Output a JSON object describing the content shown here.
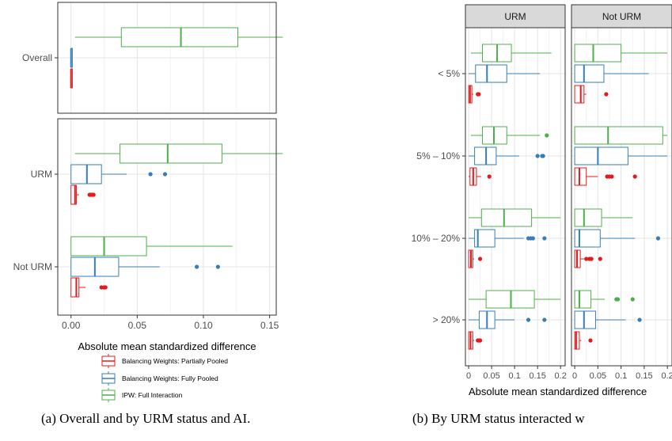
{
  "colors": {
    "partial": "#e41a1c",
    "fully": "#377eb8",
    "ipw": "#4daf4a",
    "grid": "#e4e4e4",
    "strip_bg": "#d9d9d9"
  },
  "chart_data": [
    {
      "type": "boxplot",
      "panel": "a",
      "xlabel": "Absolute mean standardized difference",
      "xlim": [
        -0.01,
        0.155
      ],
      "xticks": [
        0.0,
        0.05,
        0.1,
        0.15
      ],
      "xtick_labels": [
        "0.00",
        "0.05",
        "0.10",
        "0.15"
      ],
      "grid": true,
      "legend_position": "bottom",
      "legend": [
        {
          "key": "partial",
          "label": "Balancing Weights: Partially Pooled"
        },
        {
          "key": "fully",
          "label": "Balancing Weights: Fully Pooled"
        },
        {
          "key": "ipw",
          "label": "IPW: Full Interaction"
        }
      ],
      "facets": [
        {
          "groups": [
            {
              "label": "Overall",
              "boxes": [
                {
                  "key": "ipw",
                  "min": 0.003,
                  "q1": 0.038,
                  "median": 0.083,
                  "q3": 0.126,
                  "max": 0.16,
                  "outliers": []
                },
                {
                  "key": "fully",
                  "min": 0.0,
                  "q1": 0.0,
                  "median": 0.0,
                  "q3": 0.001,
                  "max": 0.001,
                  "outliers": []
                },
                {
                  "key": "partial",
                  "min": 0.0,
                  "q1": 0.0,
                  "median": 0.0,
                  "q3": 0.001,
                  "max": 0.001,
                  "outliers": []
                }
              ]
            }
          ]
        },
        {
          "groups": [
            {
              "label": "URM",
              "boxes": [
                {
                  "key": "ipw",
                  "min": 0.003,
                  "q1": 0.037,
                  "median": 0.073,
                  "q3": 0.114,
                  "max": 0.16,
                  "outliers": []
                },
                {
                  "key": "fully",
                  "min": 0.0,
                  "q1": 0.0,
                  "median": 0.012,
                  "q3": 0.023,
                  "max": 0.042,
                  "outliers": [
                    0.06,
                    0.071
                  ]
                },
                {
                  "key": "partial",
                  "min": 0.0,
                  "q1": 0.0,
                  "median": 0.003,
                  "q3": 0.004,
                  "max": 0.006,
                  "outliers": [
                    0.014,
                    0.015,
                    0.016,
                    0.017
                  ]
                }
              ]
            },
            {
              "label": "Not URM",
              "boxes": [
                {
                  "key": "ipw",
                  "min": 0.0,
                  "q1": 0.0,
                  "median": 0.025,
                  "q3": 0.057,
                  "max": 0.122,
                  "outliers": []
                },
                {
                  "key": "fully",
                  "min": 0.0,
                  "q1": 0.0,
                  "median": 0.018,
                  "q3": 0.036,
                  "max": 0.067,
                  "outliers": [
                    0.095,
                    0.111
                  ]
                },
                {
                  "key": "partial",
                  "min": 0.0,
                  "q1": 0.0,
                  "median": 0.004,
                  "q3": 0.006,
                  "max": 0.011,
                  "outliers": [
                    0.023,
                    0.025,
                    0.026
                  ]
                }
              ]
            }
          ]
        }
      ]
    },
    {
      "type": "boxplot",
      "panel": "b",
      "xlabel": "Absolute mean standardized difference",
      "xlim": [
        -0.007,
        0.21
      ],
      "xticks": [
        0,
        0.05,
        0.1,
        0.15,
        0.2
      ],
      "xtick_labels": [
        "0",
        "0.05",
        "0.1",
        "0.15",
        "0.2"
      ],
      "grid": true,
      "categories": [
        "< 5%",
        "5% – 10%",
        "10% – 20%",
        "> 20%"
      ],
      "facets": [
        {
          "strip": "URM",
          "groups": [
            {
              "label": "< 5%",
              "boxes": [
                {
                  "key": "ipw",
                  "min": 0.005,
                  "q1": 0.03,
                  "median": 0.062,
                  "q3": 0.093,
                  "max": 0.18,
                  "outliers": []
                },
                {
                  "key": "fully",
                  "min": 0.0,
                  "q1": 0.015,
                  "median": 0.04,
                  "q3": 0.083,
                  "max": 0.155,
                  "outliers": []
                },
                {
                  "key": "partial",
                  "min": 0.0,
                  "q1": 0.0,
                  "median": 0.003,
                  "q3": 0.007,
                  "max": 0.01,
                  "outliers": [
                    0.02,
                    0.022
                  ]
                }
              ]
            },
            {
              "label": "5% – 10%",
              "boxes": [
                {
                  "key": "ipw",
                  "min": 0.005,
                  "q1": 0.03,
                  "median": 0.055,
                  "q3": 0.083,
                  "max": 0.155,
                  "outliers": [
                    0.17
                  ]
                },
                {
                  "key": "fully",
                  "min": 0.0,
                  "q1": 0.013,
                  "median": 0.038,
                  "q3": 0.06,
                  "max": 0.11,
                  "outliers": [
                    0.15,
                    0.16,
                    0.162
                  ]
                },
                {
                  "key": "partial",
                  "min": 0.0,
                  "q1": 0.003,
                  "median": 0.01,
                  "q3": 0.017,
                  "max": 0.027,
                  "outliers": [
                    0.045
                  ]
                }
              ]
            },
            {
              "label": "10% – 20%",
              "boxes": [
                {
                  "key": "ipw",
                  "min": 0.0,
                  "q1": 0.028,
                  "median": 0.077,
                  "q3": 0.137,
                  "max": 0.2,
                  "outliers": []
                },
                {
                  "key": "fully",
                  "min": 0.0,
                  "q1": 0.013,
                  "median": 0.02,
                  "q3": 0.057,
                  "max": 0.12,
                  "outliers": [
                    0.13,
                    0.135,
                    0.14,
                    0.165
                  ]
                },
                {
                  "key": "partial",
                  "min": 0.0,
                  "q1": 0.0,
                  "median": 0.005,
                  "q3": 0.009,
                  "max": 0.012,
                  "outliers": [
                    0.025
                  ]
                }
              ]
            },
            {
              "label": "> 20%",
              "boxes": [
                {
                  "key": "ipw",
                  "min": 0.0,
                  "q1": 0.038,
                  "median": 0.092,
                  "q3": 0.143,
                  "max": 0.2,
                  "outliers": []
                },
                {
                  "key": "fully",
                  "min": 0.0,
                  "q1": 0.023,
                  "median": 0.04,
                  "q3": 0.057,
                  "max": 0.1,
                  "outliers": [
                    0.13,
                    0.165
                  ]
                },
                {
                  "key": "partial",
                  "min": 0.0,
                  "q1": 0.0,
                  "median": 0.004,
                  "q3": 0.009,
                  "max": 0.012,
                  "outliers": [
                    0.02,
                    0.023,
                    0.025
                  ]
                }
              ]
            }
          ]
        },
        {
          "strip": "Not URM",
          "groups": [
            {
              "label": "< 5%",
              "boxes": [
                {
                  "key": "ipw",
                  "min": 0.0,
                  "q1": 0.0,
                  "median": 0.04,
                  "q3": 0.1,
                  "max": 0.2,
                  "outliers": []
                },
                {
                  "key": "fully",
                  "min": 0.0,
                  "q1": 0.0,
                  "median": 0.02,
                  "q3": 0.063,
                  "max": 0.16,
                  "outliers": []
                },
                {
                  "key": "partial",
                  "min": 0.0,
                  "q1": 0.0,
                  "median": 0.013,
                  "q3": 0.02,
                  "max": 0.025,
                  "outliers": [
                    0.068
                  ]
                }
              ]
            },
            {
              "label": "5% – 10%",
              "boxes": [
                {
                  "key": "ipw",
                  "min": 0.0,
                  "q1": 0.0,
                  "median": 0.072,
                  "q3": 0.19,
                  "max": 0.2,
                  "outliers": []
                },
                {
                  "key": "fully",
                  "min": 0.0,
                  "q1": 0.0,
                  "median": 0.05,
                  "q3": 0.115,
                  "max": 0.2,
                  "outliers": []
                },
                {
                  "key": "partial",
                  "min": 0.0,
                  "q1": 0.0,
                  "median": 0.01,
                  "q3": 0.025,
                  "max": 0.05,
                  "outliers": [
                    0.07,
                    0.075,
                    0.08,
                    0.13
                  ]
                }
              ]
            },
            {
              "label": "10% – 20%",
              "boxes": [
                {
                  "key": "ipw",
                  "min": 0.0,
                  "q1": 0.0,
                  "median": 0.02,
                  "q3": 0.058,
                  "max": 0.125,
                  "outliers": []
                },
                {
                  "key": "fully",
                  "min": 0.0,
                  "q1": 0.0,
                  "median": 0.01,
                  "q3": 0.055,
                  "max": 0.13,
                  "outliers": [
                    0.18
                  ]
                },
                {
                  "key": "partial",
                  "min": 0.0,
                  "q1": 0.0,
                  "median": 0.005,
                  "q3": 0.012,
                  "max": 0.02,
                  "outliers": [
                    0.025,
                    0.032,
                    0.036,
                    0.055
                  ]
                }
              ]
            },
            {
              "label": "> 20%",
              "boxes": [
                {
                  "key": "ipw",
                  "min": 0.0,
                  "q1": 0.0,
                  "median": 0.01,
                  "q3": 0.035,
                  "max": 0.065,
                  "outliers": [
                    0.09,
                    0.093,
                    0.125
                  ]
                },
                {
                  "key": "fully",
                  "min": 0.0,
                  "q1": 0.0,
                  "median": 0.02,
                  "q3": 0.045,
                  "max": 0.11,
                  "outliers": [
                    0.14
                  ]
                },
                {
                  "key": "partial",
                  "min": 0.0,
                  "q1": 0.0,
                  "median": 0.003,
                  "q3": 0.01,
                  "max": 0.014,
                  "outliers": [
                    0.034
                  ]
                }
              ]
            }
          ]
        }
      ]
    }
  ],
  "captions": {
    "a": "(a) Overall and by URM status and AI.",
    "b": "(b) By URM status interacted w"
  }
}
